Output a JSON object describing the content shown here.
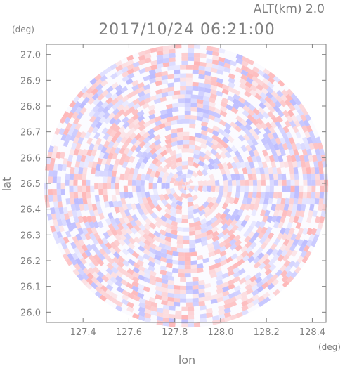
{
  "header": {
    "altitude": "ALT(km) 2.0",
    "timestamp": "2017/10/24 06:21:00"
  },
  "axes": {
    "y_unit": "(deg)",
    "x_unit": "(deg)",
    "xlabel": "lon",
    "ylabel": "lat"
  },
  "chart_data": {
    "type": "heatmap",
    "title": "2017/10/24 06:21:00",
    "subtitle": "ALT(km) 2.0",
    "xlabel": "lon",
    "ylabel": "lat",
    "x_unit": "(deg)",
    "y_unit": "(deg)",
    "xlim": [
      127.24,
      128.46
    ],
    "ylim": [
      25.96,
      27.04
    ],
    "xticks": [
      127.4,
      127.6,
      127.8,
      128.0,
      128.2,
      128.4
    ],
    "xtick_labels": [
      "127.4",
      "127.6",
      "127.8",
      "128.0",
      "128.2",
      "128.4"
    ],
    "yticks": [
      26.0,
      26.1,
      26.2,
      26.3,
      26.4,
      26.5,
      26.6,
      26.7,
      26.8,
      26.9,
      27.0
    ],
    "ytick_labels": [
      "26.0",
      "26.1",
      "26.2",
      "26.3",
      "26.4",
      "26.5",
      "26.6",
      "26.7",
      "26.8",
      "26.9",
      "27.0"
    ],
    "radar_center": {
      "lon": 127.85,
      "lat": 26.49
    },
    "coverage_radius_lon": 0.62,
    "coverage_radius_lat": 0.55,
    "colors": {
      "positive": "#ff8f8f",
      "negative": "#9a9aff",
      "neutral": "#ffffff",
      "frame": "#7f7f7f"
    },
    "grid": false,
    "legend": "none"
  }
}
